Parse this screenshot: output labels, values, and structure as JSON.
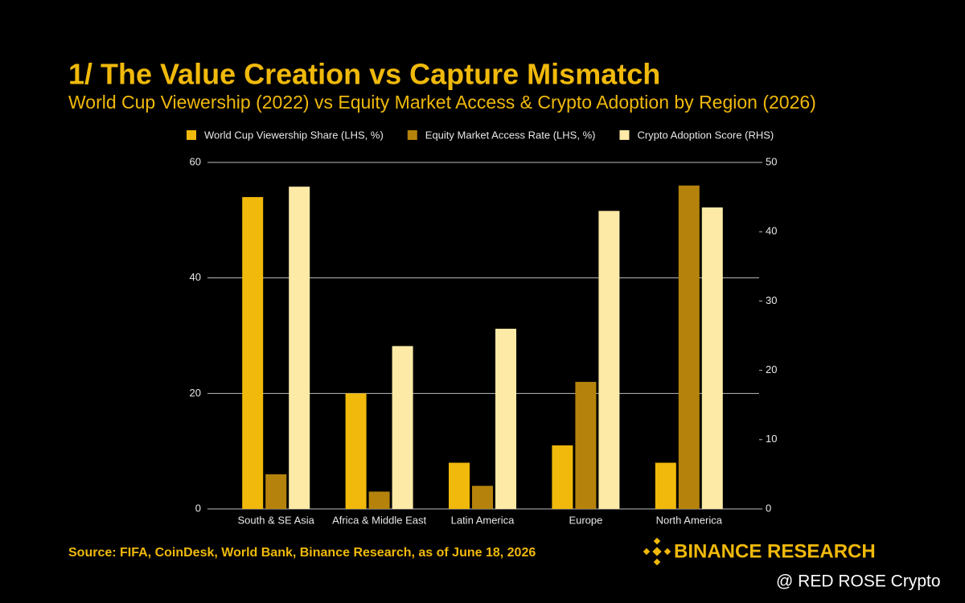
{
  "chart_data": {
    "type": "bar",
    "title": "1/ The Value Creation vs Capture Mismatch",
    "subtitle": "World Cup Viewership (2022) vs Equity Market Access & Crypto Adoption by Region (2026)",
    "categories": [
      "South & SE Asia",
      "Africa & Middle East",
      "Latin America",
      "Europe",
      "North America"
    ],
    "series": [
      {
        "name": "World Cup Viewership Share (LHS, %)",
        "color": "#f0b90b",
        "values": [
          54,
          20,
          8,
          11,
          8
        ]
      },
      {
        "name": "Equity Market Access Rate (LHS, %)",
        "color": "#b5830c",
        "values": [
          6,
          3,
          4,
          22,
          56
        ]
      },
      {
        "name": "Crypto Adoption Score (RHS)",
        "color": "#fdeaa6",
        "axis": "y2",
        "values": [
          46.5,
          23.5,
          26,
          43,
          43.5
        ]
      }
    ],
    "ylim": [
      0,
      60
    ],
    "yticks": [
      0,
      20,
      40,
      60
    ],
    "y2lim": [
      0,
      50
    ],
    "y2ticks": [
      0,
      10,
      20,
      30,
      40,
      50
    ],
    "grid": true,
    "legend": "top",
    "source": "Source: FIFA, CoinDesk, World Bank, Binance Research, as of June 18, 2026",
    "brand": "BINANCE RESEARCH",
    "watermark": "@ RED ROSE Crypto"
  }
}
